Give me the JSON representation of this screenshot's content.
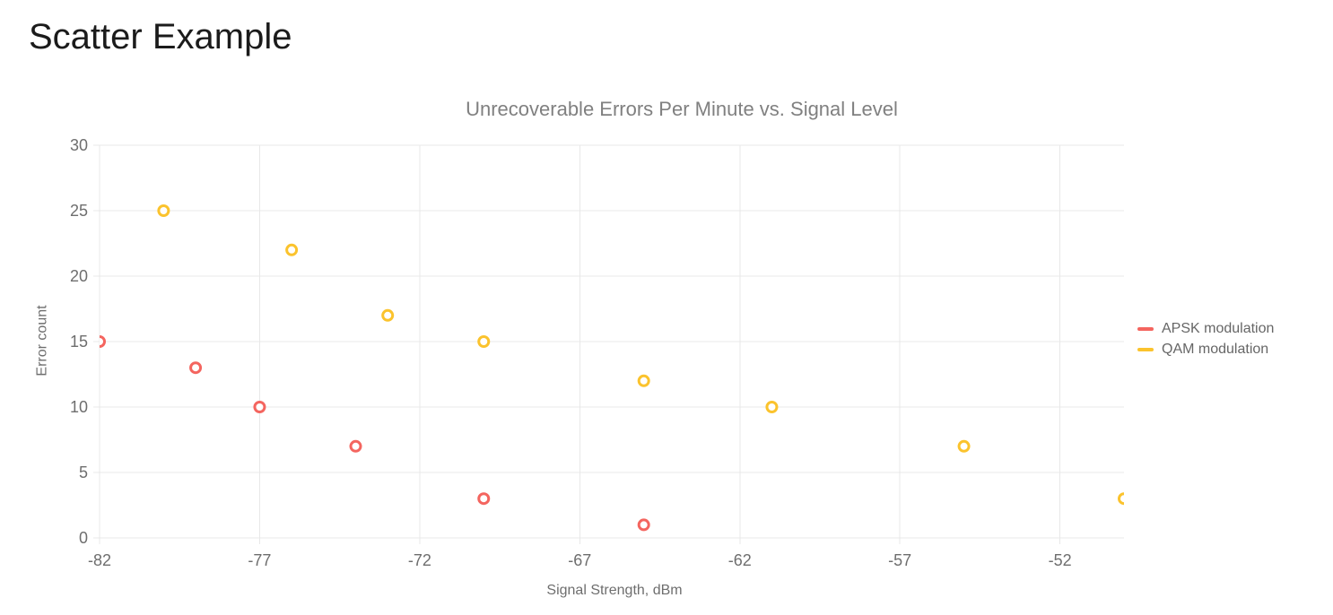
{
  "page": {
    "title": "Scatter Example"
  },
  "chart_data": {
    "type": "scatter",
    "title": "Unrecoverable Errors Per Minute vs. Signal Level",
    "xlabel": "Signal Strength, dBm",
    "ylabel": "Error count",
    "xlim": [
      -82,
      -50
    ],
    "ylim": [
      0,
      30
    ],
    "x_ticks": [
      -82,
      -77,
      -72,
      -67,
      -62,
      -57,
      -52
    ],
    "y_ticks": [
      0,
      5,
      10,
      15,
      20,
      25,
      30
    ],
    "grid": true,
    "legend_position": "right-middle",
    "marker": "open-circle",
    "series": [
      {
        "name": "APSK modulation",
        "color": "#F4655F",
        "points": [
          [
            -82,
            15
          ],
          [
            -79,
            13
          ],
          [
            -77,
            10
          ],
          [
            -74,
            7
          ],
          [
            -70,
            3
          ],
          [
            -65,
            1
          ]
        ]
      },
      {
        "name": "QAM modulation",
        "color": "#FBC32D",
        "points": [
          [
            -80,
            25
          ],
          [
            -76,
            22
          ],
          [
            -73,
            17
          ],
          [
            -70,
            15
          ],
          [
            -65,
            12
          ],
          [
            -61,
            10
          ],
          [
            -55,
            7
          ],
          [
            -50,
            3
          ]
        ]
      }
    ]
  }
}
